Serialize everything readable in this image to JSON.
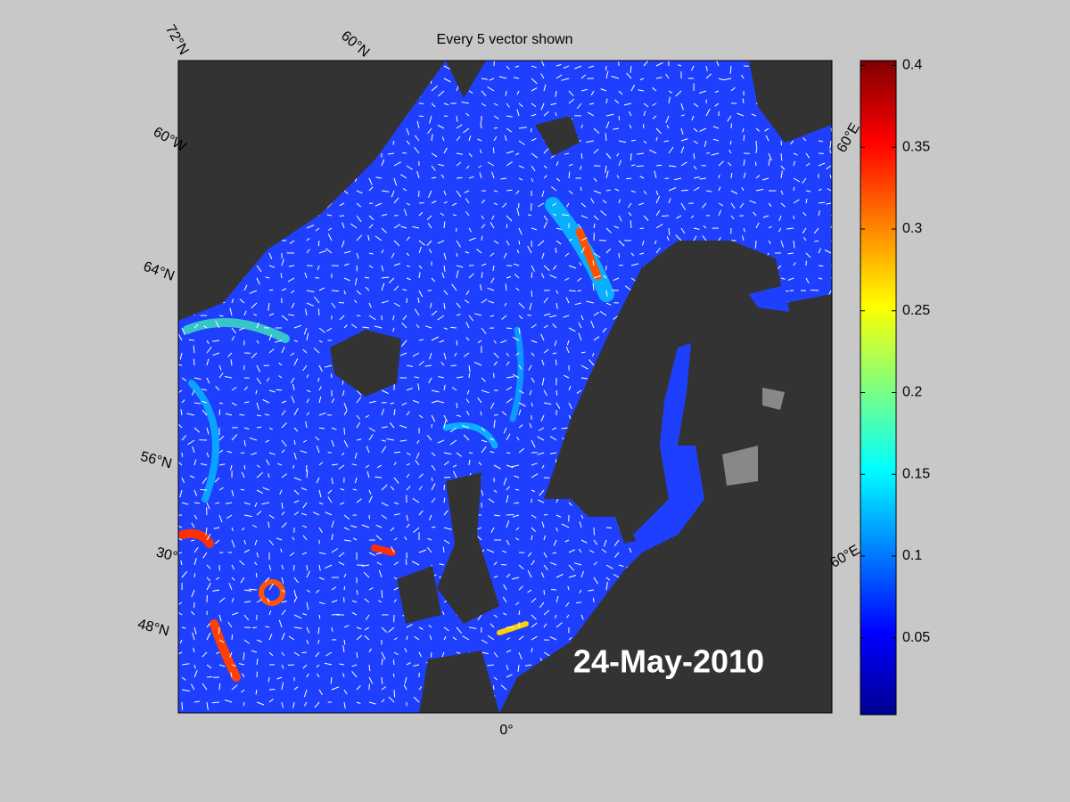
{
  "title": "Every 5 vector shown",
  "date_label": "24-May-2010",
  "graticule_labels": [
    "72°N",
    "60°N",
    "60°W",
    "64°N",
    "56°N",
    "30°",
    "48°N",
    "0°",
    "60°E",
    "60°E"
  ],
  "colorbar": {
    "colormap": "jet",
    "lim": [
      0.003,
      0.403
    ],
    "ticks": [
      0.05,
      0.1,
      0.15,
      0.2,
      0.25,
      0.3,
      0.35,
      0.4
    ]
  }
}
